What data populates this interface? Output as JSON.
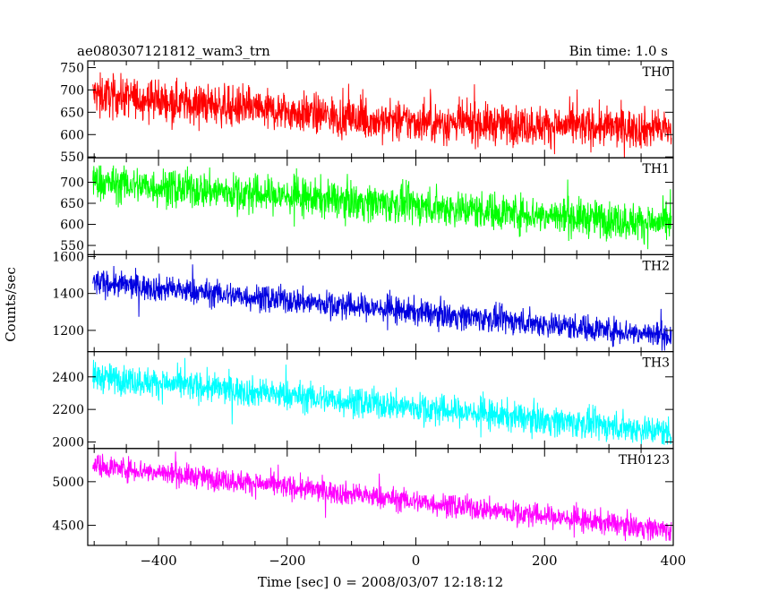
{
  "header": {
    "title": "ae080307121812_wam3_trn",
    "bin_time": "Bin time: 1.0 s"
  },
  "chart_data": {
    "type": "line",
    "xlabel": "Time [sec] 0 = 2008/03/07 12:18:12",
    "ylabel": "Counts/sec",
    "xlim": [
      -510,
      400
    ],
    "x_ticks": [
      -400,
      -200,
      0,
      200,
      400
    ],
    "x_tick_labels": [
      "−400",
      "−200",
      "0",
      "200",
      "400"
    ],
    "panels": [
      {
        "name": "TH0",
        "color": "#ff0000",
        "ylim": [
          548,
          765
        ],
        "y_ticks": [
          550,
          600,
          650,
          700,
          750
        ],
        "trend": {
          "x": [
            -500,
            -100,
            -90,
            400
          ],
          "y": [
            690,
            638,
            632,
            612
          ]
        },
        "noise": 22,
        "spike_extent": [
          548,
          765
        ]
      },
      {
        "name": "TH1",
        "color": "#00ff00",
        "ylim": [
          528,
          758
        ],
        "y_ticks": [
          550,
          600,
          650,
          700
        ],
        "trend": {
          "x": [
            -500,
            400
          ],
          "y": [
            700,
            600
          ]
        },
        "noise": 22,
        "spike_extent": [
          530,
          740
        ]
      },
      {
        "name": "TH2",
        "color": "#0000e0",
        "ylim": [
          1085,
          1610
        ],
        "y_ticks": [
          1200,
          1400,
          1600
        ],
        "trend": {
          "x": [
            -500,
            400
          ],
          "y": [
            1460,
            1170
          ]
        },
        "noise": 35,
        "spike_extent": [
          1090,
          1610
        ]
      },
      {
        "name": "TH3",
        "color": "#00ffff",
        "ylim": [
          1960,
          2555
        ],
        "y_ticks": [
          2000,
          2200,
          2400
        ],
        "trend": {
          "x": [
            -500,
            400
          ],
          "y": [
            2400,
            2060
          ]
        },
        "noise": 45,
        "spike_extent": [
          1965,
          2555
        ]
      },
      {
        "name": "TH0123",
        "color": "#ff00ff",
        "ylim": [
          4270,
          5380
        ],
        "y_ticks": [
          4500,
          5000
        ],
        "trend": {
          "x": [
            -500,
            400
          ],
          "y": [
            5190,
            4440
          ]
        },
        "noise": 65,
        "spike_extent": [
          4280,
          5370
        ]
      }
    ]
  }
}
